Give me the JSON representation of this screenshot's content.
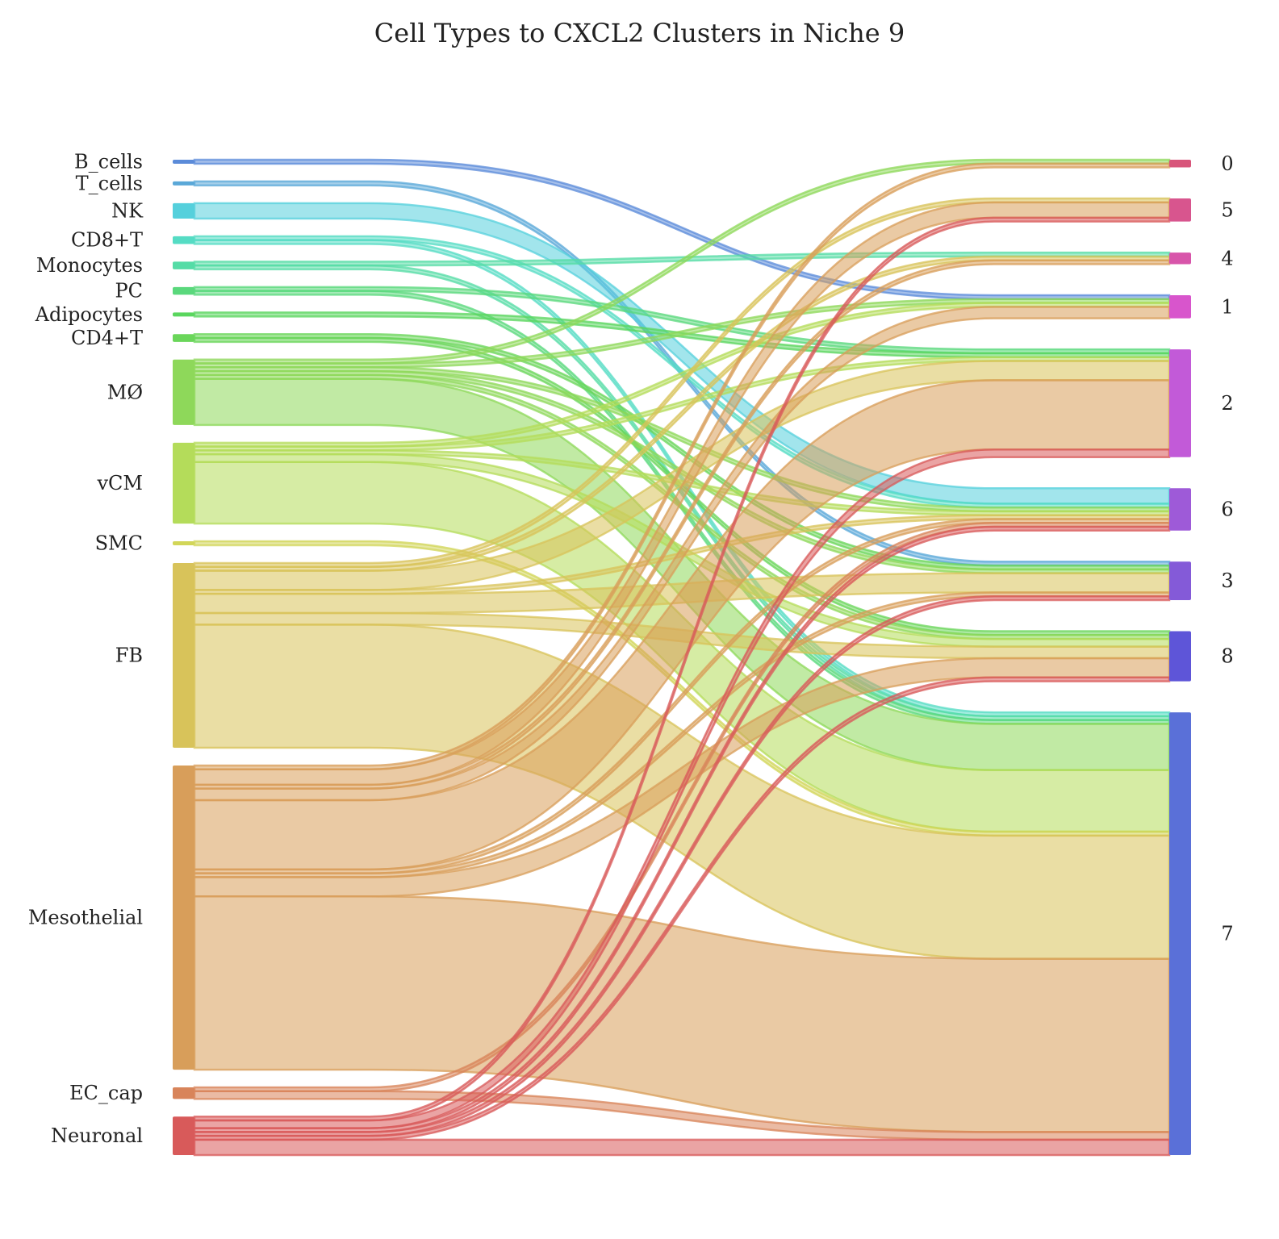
{
  "chart_data": {
    "type": "sankey",
    "title": "Cell Types to CXCL2 Clusters in Niche 9",
    "sources": [
      {
        "name": "B_cells",
        "color": "#5b8bd9"
      },
      {
        "name": "T_cells",
        "color": "#5aa8d8"
      },
      {
        "name": "NK",
        "color": "#55d0dc"
      },
      {
        "name": "CD8+T",
        "color": "#55dcc4"
      },
      {
        "name": "Monocytes",
        "color": "#55dca6"
      },
      {
        "name": "PC",
        "color": "#5ad87c"
      },
      {
        "name": "Adipocytes",
        "color": "#5ad65e"
      },
      {
        "name": "CD4+T",
        "color": "#6ad65a"
      },
      {
        "name": "MØ",
        "color": "#8ed85a"
      },
      {
        "name": "vCM",
        "color": "#b4dc5a"
      },
      {
        "name": "SMC",
        "color": "#d2d658"
      },
      {
        "name": "FB",
        "color": "#d8c35a"
      },
      {
        "name": "Mesothelial",
        "color": "#d89e5a"
      },
      {
        "name": "EC_cap",
        "color": "#d8845a"
      },
      {
        "name": "Neuronal",
        "color": "#d85a5a"
      }
    ],
    "targets": [
      {
        "name": "0",
        "color": "#d8557a"
      },
      {
        "name": "5",
        "color": "#d8558e"
      },
      {
        "name": "4",
        "color": "#d855aa"
      },
      {
        "name": "1",
        "color": "#d855cc"
      },
      {
        "name": "2",
        "color": "#c25ad8"
      },
      {
        "name": "6",
        "color": "#9e5ad8"
      },
      {
        "name": "3",
        "color": "#845ad8"
      },
      {
        "name": "8",
        "color": "#5e55d8"
      },
      {
        "name": "7",
        "color": "#5a70d8"
      }
    ],
    "links": [
      {
        "source": "B_cells",
        "target": "1",
        "value": 1
      },
      {
        "source": "T_cells",
        "target": "3",
        "value": 1
      },
      {
        "source": "NK",
        "target": "6",
        "value": 4
      },
      {
        "source": "CD8+T",
        "target": "7",
        "value": 1
      },
      {
        "source": "CD8+T",
        "target": "6",
        "value": 1
      },
      {
        "source": "Monocytes",
        "target": "4",
        "value": 1
      },
      {
        "source": "Monocytes",
        "target": "7",
        "value": 1
      },
      {
        "source": "PC",
        "target": "2",
        "value": 1
      },
      {
        "source": "PC",
        "target": "7",
        "value": 1
      },
      {
        "source": "Adipocytes",
        "target": "2",
        "value": 1
      },
      {
        "source": "CD4+T",
        "target": "3",
        "value": 1
      },
      {
        "source": "CD4+T",
        "target": "8",
        "value": 1
      },
      {
        "source": "MØ",
        "target": "0",
        "value": 1
      },
      {
        "source": "MØ",
        "target": "1",
        "value": 1
      },
      {
        "source": "MØ",
        "target": "6",
        "value": 1
      },
      {
        "source": "MØ",
        "target": "3",
        "value": 1
      },
      {
        "source": "MØ",
        "target": "8",
        "value": 1
      },
      {
        "source": "MØ",
        "target": "7",
        "value": 12
      },
      {
        "source": "vCM",
        "target": "1",
        "value": 1
      },
      {
        "source": "vCM",
        "target": "2",
        "value": 1
      },
      {
        "source": "vCM",
        "target": "6",
        "value": 1
      },
      {
        "source": "vCM",
        "target": "8",
        "value": 2
      },
      {
        "source": "vCM",
        "target": "7",
        "value": 16
      },
      {
        "source": "SMC",
        "target": "7",
        "value": 1
      },
      {
        "source": "FB",
        "target": "5",
        "value": 1
      },
      {
        "source": "FB",
        "target": "4",
        "value": 1
      },
      {
        "source": "FB",
        "target": "2",
        "value": 5
      },
      {
        "source": "FB",
        "target": "6",
        "value": 1
      },
      {
        "source": "FB",
        "target": "3",
        "value": 5
      },
      {
        "source": "FB",
        "target": "8",
        "value": 3
      },
      {
        "source": "FB",
        "target": "7",
        "value": 32
      },
      {
        "source": "Mesothelial",
        "target": "0",
        "value": 1
      },
      {
        "source": "Mesothelial",
        "target": "5",
        "value": 4
      },
      {
        "source": "Mesothelial",
        "target": "4",
        "value": 1
      },
      {
        "source": "Mesothelial",
        "target": "1",
        "value": 3
      },
      {
        "source": "Mesothelial",
        "target": "2",
        "value": 18
      },
      {
        "source": "Mesothelial",
        "target": "6",
        "value": 1
      },
      {
        "source": "Mesothelial",
        "target": "3",
        "value": 1
      },
      {
        "source": "Mesothelial",
        "target": "8",
        "value": 5
      },
      {
        "source": "Mesothelial",
        "target": "7",
        "value": 45
      },
      {
        "source": "EC_cap",
        "target": "6",
        "value": 1
      },
      {
        "source": "EC_cap",
        "target": "7",
        "value": 2
      },
      {
        "source": "Neuronal",
        "target": "5",
        "value": 1
      },
      {
        "source": "Neuronal",
        "target": "2",
        "value": 2
      },
      {
        "source": "Neuronal",
        "target": "6",
        "value": 1
      },
      {
        "source": "Neuronal",
        "target": "3",
        "value": 1
      },
      {
        "source": "Neuronal",
        "target": "8",
        "value": 1
      },
      {
        "source": "Neuronal",
        "target": "7",
        "value": 4
      }
    ]
  }
}
